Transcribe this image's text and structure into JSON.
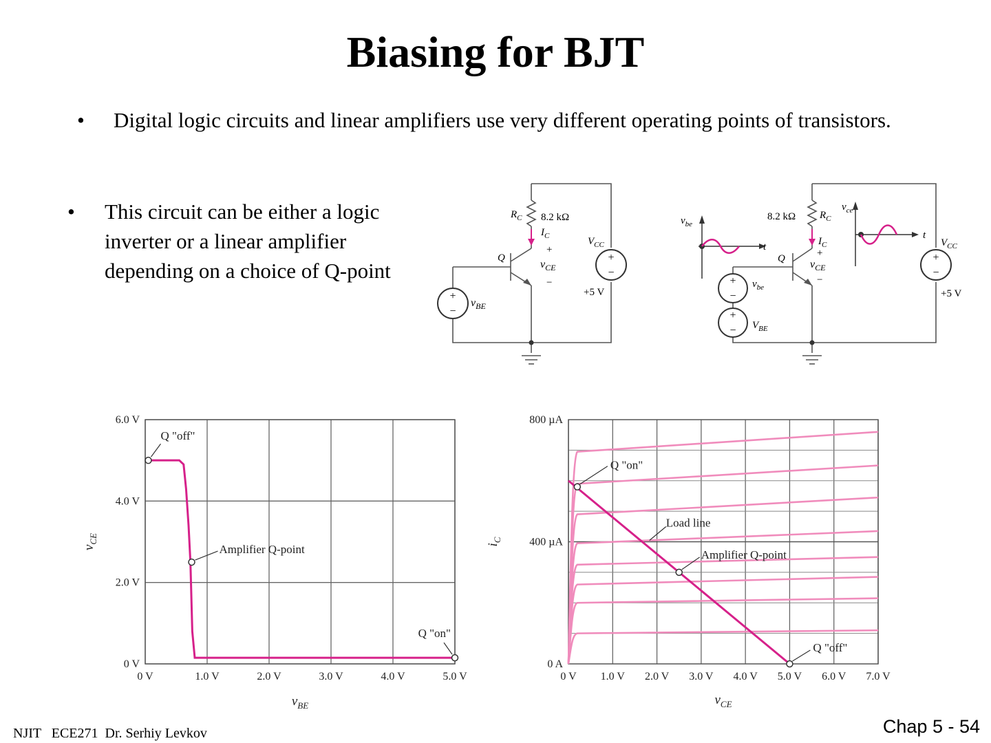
{
  "slide": {
    "title": "Biasing for BJT",
    "bullets": [
      {
        "marker": "•",
        "text": "Digital logic circuits and linear amplifiers use very different operating points of transistors."
      },
      {
        "marker": "•",
        "text": "This circuit can be either a logic inverter or a linear amplifier depending on a choice of Q-point"
      }
    ],
    "footer_left": "NJIT   ECE271  Dr. Serhiy Levkov",
    "footer_right": "Chap 5 - 54"
  },
  "circuits": {
    "left": {
      "rc_label": "R",
      "rc_sub": "C",
      "resistor_value": "8.2 kΩ",
      "ic_label": "I",
      "ic_sub": "C",
      "plus": "+",
      "minus": "−",
      "vce_label": "v",
      "vce_sub": "CE",
      "q_label": "Q",
      "vcc_label": "V",
      "vcc_sub": "CC",
      "supply_value": "+5 V",
      "vbe_label": "v",
      "vbe_sub": "BE"
    },
    "right": {
      "resistor_value": "8.2 kΩ",
      "rc_label": "R",
      "rc_sub": "C",
      "ic_label": "I",
      "ic_sub": "C",
      "plus": "+",
      "minus": "−",
      "vce_label": "v",
      "vce_sub": "CE",
      "q_label": "Q",
      "vcc_label": "V",
      "vcc_sub": "CC",
      "supply_value": "+5 V",
      "vbe_small_label": "v",
      "vbe_small_sub": "be",
      "vbe_dc_label": "V",
      "vbe_dc_sub": "BE",
      "input_axis_label": "v",
      "input_axis_sub": "be",
      "output_axis_label": "v",
      "output_axis_sub": "ce",
      "time_label": "t"
    }
  },
  "chart_data": [
    {
      "type": "line",
      "title": "",
      "xlabel": "v",
      "xlabel_sub": "BE",
      "ylabel": "v",
      "ylabel_sub": "CE",
      "xlim": [
        0,
        5
      ],
      "ylim": [
        0,
        6
      ],
      "x_ticks": [
        "0 V",
        "1.0 V",
        "2.0 V",
        "3.0 V",
        "4.0 V",
        "5.0 V"
      ],
      "y_ticks": [
        "0 V",
        "2.0 V",
        "4.0 V",
        "6.0 V"
      ],
      "grid": true,
      "series_color": "#d6218a",
      "series": [
        {
          "x": [
            0,
            0.55,
            0.62,
            0.66,
            0.7,
            0.73,
            0.76,
            0.8,
            5.0
          ],
          "y": [
            5.0,
            5.0,
            4.9,
            4.3,
            3.4,
            2.5,
            0.8,
            0.15,
            0.15
          ]
        }
      ],
      "annotations": [
        {
          "text": "Q \"off\"",
          "x": 0.05,
          "y": 5.0
        },
        {
          "text": "Amplifier Q-point",
          "x": 0.75,
          "y": 2.5
        },
        {
          "text": "Q \"on\"",
          "x": 5.0,
          "y": 0.15
        }
      ]
    },
    {
      "type": "line",
      "title": "",
      "xlabel": "v",
      "xlabel_sub": "CE",
      "ylabel": "i",
      "ylabel_sub": "C",
      "xlim": [
        0,
        7
      ],
      "ylim": [
        0,
        800
      ],
      "x_ticks": [
        "0 V",
        "1.0 V",
        "2.0 V",
        "3.0 V",
        "4.0 V",
        "5.0 V",
        "6.0 V",
        "7.0 V"
      ],
      "y_ticks": [
        "0 A",
        "400 µA",
        "800 µA"
      ],
      "grid": true,
      "curve_color": "#f08cbc",
      "load_line_color": "#d6218a",
      "characteristic_curves": [
        {
          "sat": 100,
          "end": 110
        },
        {
          "sat": 200,
          "end": 215
        },
        {
          "sat": 260,
          "end": 285
        },
        {
          "sat": 325,
          "end": 350
        },
        {
          "sat": 395,
          "end": 435
        },
        {
          "sat": 490,
          "end": 545
        },
        {
          "sat": 590,
          "end": 650
        },
        {
          "sat": 695,
          "end": 760
        }
      ],
      "load_line": {
        "x": [
          0,
          5.0
        ],
        "y": [
          600,
          0
        ]
      },
      "annotations": [
        {
          "text": "Q \"on\"",
          "x": 0.2,
          "y": 580
        },
        {
          "text": "Load line",
          "x": 1.8,
          "y": 400
        },
        {
          "text": "Amplifier Q-point",
          "x": 2.5,
          "y": 300
        },
        {
          "text": "Q \"off\"",
          "x": 5.0,
          "y": 0
        }
      ]
    }
  ]
}
